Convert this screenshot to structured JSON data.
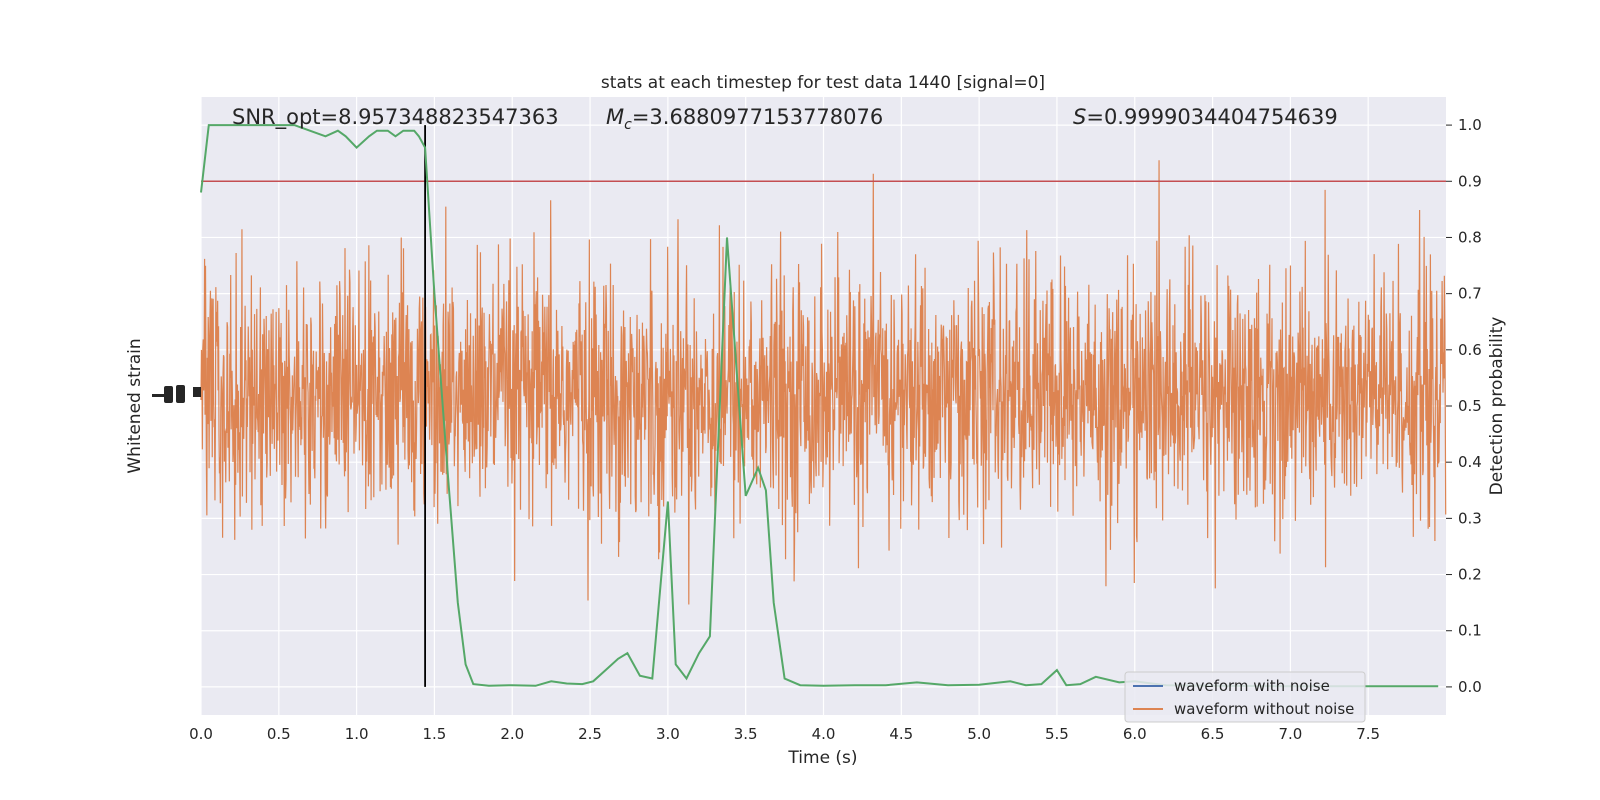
{
  "chart_data": {
    "type": "line",
    "title": "stats at each timestep for test data 1440 [signal=0]",
    "xlabel": "Time (s)",
    "ylabel_left": "Whitened strain",
    "ylabel_right": "Detection probability",
    "xlim": [
      0.0,
      8.0
    ],
    "ylim_right": [
      -0.05,
      1.05
    ],
    "x_ticks": [
      "0.0",
      "0.5",
      "1.0",
      "1.5",
      "2.0",
      "2.5",
      "3.0",
      "3.5",
      "4.0",
      "4.5",
      "5.0",
      "5.5",
      "6.0",
      "6.5",
      "7.0",
      "7.5"
    ],
    "y_ticks_right": [
      "0.0",
      "0.1",
      "0.2",
      "0.3",
      "0.4",
      "0.5",
      "0.6",
      "0.7",
      "0.8",
      "0.9",
      "1.0"
    ],
    "grid": true,
    "legend_position": "lower-right",
    "annotations": {
      "snr": "SNR_opt=8.957348823547363",
      "mc_symbol": "M",
      "mc_sub": "c",
      "mc_value": "=3.6880977153778076",
      "s_symbol": "S",
      "s_value": "=0.9999034404754639"
    },
    "threshold": 0.9,
    "marker_time": 1.44,
    "series": [
      {
        "name": "waveform with noise",
        "color": "#4c72b0"
      },
      {
        "name": "waveform without noise",
        "color": "#dd8452"
      }
    ],
    "detection_probability": {
      "color": "#55a868",
      "x": [
        0.0,
        0.05,
        0.12,
        0.2,
        0.3,
        0.4,
        0.5,
        0.6,
        0.7,
        0.8,
        0.88,
        0.93,
        1.0,
        1.08,
        1.13,
        1.2,
        1.25,
        1.3,
        1.37,
        1.4,
        1.44,
        1.5,
        1.58,
        1.65,
        1.7,
        1.75,
        1.85,
        2.0,
        2.15,
        2.25,
        2.35,
        2.45,
        2.52,
        2.6,
        2.68,
        2.74,
        2.82,
        2.9,
        3.0,
        3.05,
        3.12,
        3.2,
        3.27,
        3.38,
        3.5,
        3.58,
        3.63,
        3.68,
        3.75,
        3.85,
        4.0,
        4.2,
        4.4,
        4.6,
        4.8,
        5.0,
        5.2,
        5.3,
        5.4,
        5.5,
        5.56,
        5.65,
        5.75,
        5.9,
        6.0,
        6.2,
        6.5,
        7.0,
        7.5,
        7.95
      ],
      "y": [
        0.88,
        1.0,
        1.0,
        1.0,
        1.0,
        1.0,
        1.0,
        1.0,
        0.99,
        0.98,
        0.99,
        0.98,
        0.96,
        0.98,
        0.99,
        0.99,
        0.98,
        0.99,
        0.99,
        0.98,
        0.96,
        0.7,
        0.4,
        0.15,
        0.04,
        0.005,
        0.002,
        0.003,
        0.002,
        0.01,
        0.006,
        0.005,
        0.01,
        0.03,
        0.05,
        0.06,
        0.02,
        0.015,
        0.33,
        0.04,
        0.015,
        0.06,
        0.09,
        0.8,
        0.34,
        0.39,
        0.35,
        0.15,
        0.015,
        0.003,
        0.002,
        0.003,
        0.003,
        0.008,
        0.003,
        0.004,
        0.01,
        0.003,
        0.005,
        0.03,
        0.003,
        0.005,
        0.018,
        0.008,
        0.01,
        0.003,
        0.002,
        0.001,
        0.001,
        0.001
      ]
    }
  }
}
